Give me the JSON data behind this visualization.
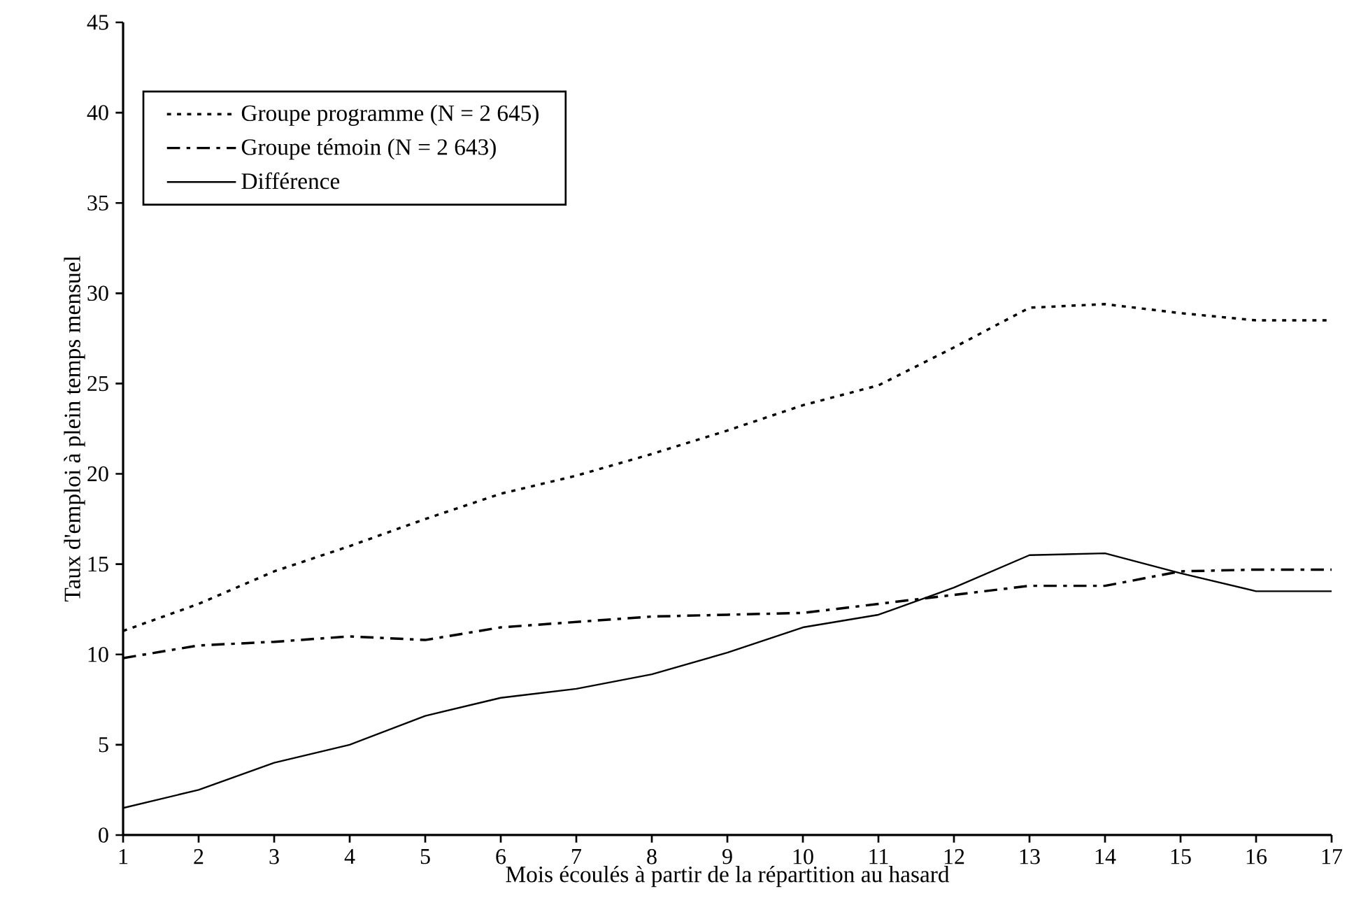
{
  "chart_data": {
    "type": "line",
    "xlabel": "Mois écoulés à partir de la répartition au hasard",
    "ylabel": "Taux d'emploi à plein temps mensuel",
    "x": [
      1,
      2,
      3,
      4,
      5,
      6,
      7,
      8,
      9,
      10,
      11,
      12,
      13,
      14,
      15,
      16,
      17
    ],
    "series": [
      {
        "name": "Groupe programme (N = 2 645)",
        "color": "#000000",
        "line_style": "dotted",
        "values": [
          11.3,
          12.8,
          14.6,
          16.0,
          17.5,
          18.9,
          19.9,
          21.1,
          22.4,
          23.8,
          24.9,
          27.0,
          29.2,
          29.4,
          28.9,
          28.5,
          28.5
        ]
      },
      {
        "name": "Groupe témoin (N = 2 643)",
        "color": "#000000",
        "line_style": "dashed",
        "values": [
          9.8,
          10.5,
          10.7,
          11.0,
          10.8,
          11.5,
          11.8,
          12.1,
          12.2,
          12.3,
          12.8,
          13.3,
          13.8,
          13.8,
          14.6,
          14.7,
          14.7
        ]
      },
      {
        "name": "Différence",
        "color": "#000000",
        "line_style": "solid",
        "values": [
          1.5,
          2.5,
          4.0,
          5.0,
          6.6,
          7.6,
          8.1,
          8.9,
          10.1,
          11.5,
          12.2,
          13.7,
          15.5,
          15.6,
          14.5,
          13.5,
          13.5
        ]
      }
    ],
    "xlim": [
      1,
      17
    ],
    "xticks": [
      1,
      2,
      3,
      4,
      5,
      6,
      7,
      8,
      9,
      10,
      11,
      12,
      13,
      14,
      15,
      16,
      17
    ],
    "ylim": [
      0,
      45
    ],
    "yticks": [
      0,
      5,
      10,
      15,
      20,
      25,
      30,
      35,
      40,
      45
    ],
    "grid": false,
    "legend": "top left"
  }
}
